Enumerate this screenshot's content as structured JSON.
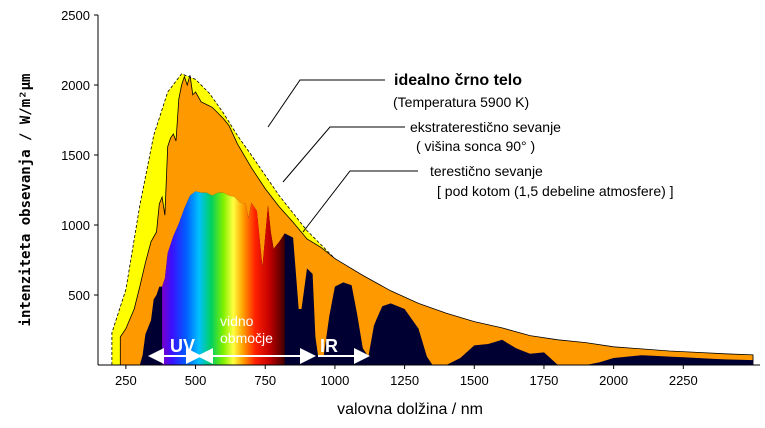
{
  "chart_data": {
    "type": "area",
    "xlabel": "valovna dolžina  /  nm",
    "ylabel": "intenziteta obsevanja  /  W/m²µm",
    "xlim": [
      150,
      2500
    ],
    "ylim": [
      0,
      2500
    ],
    "xticks": [
      250,
      500,
      750,
      1000,
      1250,
      1500,
      1750,
      2000,
      2250
    ],
    "yticks": [
      500,
      1000,
      1500,
      2000,
      2500
    ],
    "grid": false,
    "colors": {
      "blackbody": "#ffff00",
      "extraterrestrial": "#ff9900",
      "terrestrial": "#000033"
    },
    "series": [
      {
        "key": "blackbody",
        "x": [
          200,
          250,
          300,
          350,
          400,
          450,
          500,
          550,
          600,
          650,
          700,
          800,
          900,
          1000,
          1100,
          1200,
          1300,
          1400,
          1500,
          1600,
          1700,
          1800,
          1900,
          2000,
          2100,
          2200,
          2300,
          2400,
          2500
        ],
        "y": [
          230,
          540,
          1140,
          1640,
          1950,
          2080,
          2040,
          1940,
          1800,
          1640,
          1500,
          1210,
          960,
          760,
          610,
          500,
          410,
          335,
          275,
          228,
          190,
          160,
          136,
          117,
          100,
          87,
          76,
          67,
          59
        ]
      },
      {
        "key": "extraterrestrial",
        "x": [
          230,
          250,
          280,
          300,
          320,
          340,
          360,
          370,
          380,
          390,
          400,
          410,
          420,
          430,
          440,
          450,
          460,
          470,
          480,
          490,
          500,
          520,
          540,
          560,
          580,
          600,
          620,
          650,
          700,
          750,
          800,
          850,
          900,
          950,
          1000,
          1100,
          1200,
          1300,
          1400,
          1500,
          1600,
          1700,
          1800,
          1900,
          2000,
          2100,
          2200,
          2300,
          2400,
          2500
        ],
        "y": [
          200,
          260,
          400,
          560,
          730,
          880,
          950,
          1150,
          1200,
          1070,
          1560,
          1620,
          1650,
          1600,
          1900,
          2000,
          2060,
          2000,
          2070,
          1930,
          1950,
          1880,
          1860,
          1840,
          1800,
          1760,
          1710,
          1580,
          1410,
          1260,
          1130,
          1020,
          900,
          840,
          760,
          640,
          530,
          440,
          370,
          310,
          265,
          210,
          180,
          160,
          130,
          115,
          100,
          90,
          80,
          72
        ]
      },
      {
        "key": "terrestrial",
        "x": [
          300,
          310,
          320,
          340,
          350,
          360,
          370,
          380,
          390,
          400,
          420,
          440,
          460,
          480,
          500,
          520,
          540,
          560,
          580,
          600,
          620,
          640,
          660,
          680,
          690,
          700,
          720,
          740,
          760,
          770,
          780,
          800,
          820,
          850,
          870,
          880,
          900,
          920,
          930,
          940,
          960,
          980,
          1000,
          1030,
          1060,
          1080,
          1100,
          1120,
          1140,
          1150,
          1170,
          1200,
          1250,
          1300,
          1330,
          1350,
          1380,
          1400,
          1450,
          1500,
          1550,
          1600,
          1650,
          1700,
          1750,
          1800,
          1850,
          1900,
          1950,
          2000,
          2050,
          2100,
          2150,
          2200,
          2250,
          2300,
          2350,
          2400,
          2500
        ],
        "y": [
          0,
          70,
          220,
          320,
          470,
          500,
          560,
          560,
          620,
          800,
          920,
          1010,
          1120,
          1210,
          1240,
          1230,
          1230,
          1210,
          1230,
          1230,
          1210,
          1200,
          1160,
          1150,
          1050,
          1160,
          1100,
          700,
          1140,
          950,
          830,
          880,
          940,
          910,
          400,
          400,
          690,
          650,
          200,
          60,
          70,
          350,
          560,
          590,
          570,
          360,
          120,
          60,
          280,
          330,
          420,
          440,
          400,
          260,
          60,
          0,
          0,
          0,
          50,
          140,
          150,
          180,
          120,
          80,
          90,
          0,
          0,
          0,
          20,
          50,
          60,
          70,
          65,
          60,
          55,
          50,
          45,
          40,
          35
        ]
      }
    ],
    "annotations": {
      "blackbody_title": "idealno črno telo",
      "blackbody_sub": "(Temperatura 5900 K)",
      "extra_title": "ekstraterestično sevanje",
      "extra_sub": "( višina sonca 90° )",
      "terr_title": "terestično sevanje",
      "terr_sub": "[ pod kotom (1,5 debeline atmosfere) ]"
    },
    "bands": {
      "uv": "UV",
      "visible_line1": "vidno",
      "visible_line2": "območje",
      "ir": "IR"
    }
  }
}
